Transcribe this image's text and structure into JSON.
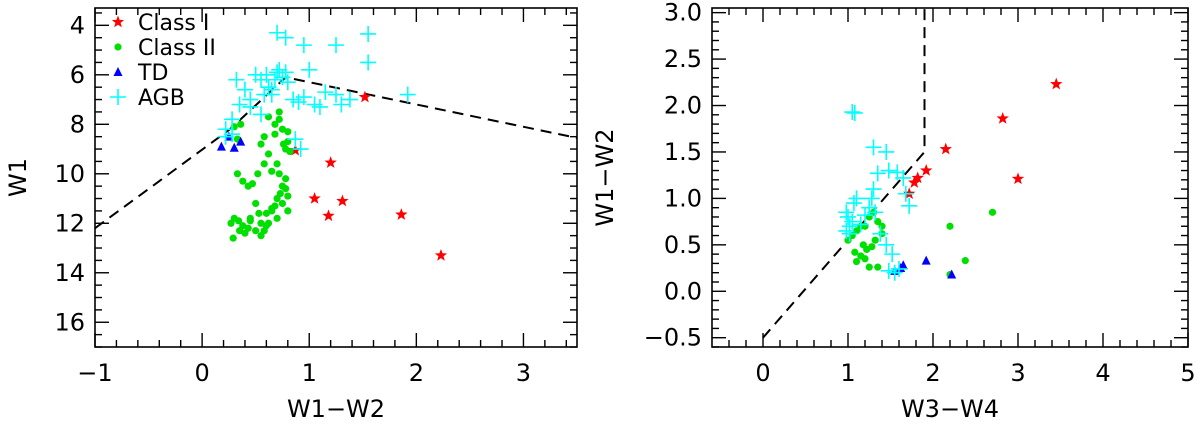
{
  "chart_data": [
    {
      "type": "scatter",
      "xlabel": "W1−W2",
      "ylabel": "W1",
      "xlim": [
        -1,
        3.5
      ],
      "ylim": [
        17,
        3.3
      ],
      "y_inverted": true,
      "xticks": [
        -1,
        0,
        1,
        2,
        3
      ],
      "xtick_labels": [
        "−1",
        "0",
        "1",
        "2",
        "3"
      ],
      "yticks": [
        4,
        6,
        8,
        10,
        12,
        14,
        16
      ],
      "ytick_labels": [
        "4",
        "6",
        "8",
        "10",
        "12",
        "14",
        "16"
      ],
      "legend": {
        "placement": "top-left",
        "entries": [
          "Class I",
          "Class II",
          "TD",
          "AGB"
        ]
      },
      "series": [
        {
          "name": "Class I",
          "marker": "star",
          "color": "#ff0000",
          "x": [
            0.87,
            1.2,
            1.05,
            1.18,
            1.31,
            1.52,
            1.86,
            2.23
          ],
          "y": [
            9.05,
            9.55,
            11.0,
            11.7,
            11.1,
            6.9,
            11.65,
            13.3
          ]
        },
        {
          "name": "Class II",
          "marker": "circle",
          "color": "#00e000",
          "x": [
            0.3,
            0.33,
            0.36,
            0.29,
            0.35,
            0.27,
            0.3,
            0.34,
            0.38,
            0.4,
            0.43,
            0.45,
            0.33,
            0.38,
            0.43,
            0.47,
            0.5,
            0.53,
            0.55,
            0.58,
            0.6,
            0.62,
            0.65,
            0.68,
            0.7,
            0.73,
            0.75,
            0.78,
            0.8,
            0.82,
            0.45,
            0.5,
            0.55,
            0.6,
            0.65,
            0.7,
            0.75,
            0.8,
            0.52,
            0.58,
            0.65,
            0.72,
            0.78,
            0.55,
            0.62,
            0.7,
            0.58,
            0.68,
            0.75,
            0.62,
            0.72,
            0.8,
            0.68,
            0.78,
            0.72,
            0.8,
            0.76
          ],
          "y": [
            8.1,
            8.6,
            8.0,
            12.6,
            12.3,
            12.0,
            11.8,
            11.9,
            12.1,
            12.4,
            12.2,
            11.8,
            10.0,
            10.3,
            10.5,
            10.4,
            11.2,
            11.6,
            12.5,
            12.3,
            12.1,
            12.0,
            11.5,
            11.3,
            11.0,
            10.8,
            10.5,
            10.2,
            11.5,
            9.1,
            11.9,
            12.3,
            12.0,
            11.6,
            11.4,
            11.8,
            11.2,
            10.9,
            10.0,
            9.6,
            9.9,
            10.0,
            10.6,
            8.8,
            9.2,
            9.6,
            8.5,
            8.0,
            8.2,
            7.7,
            7.8,
            8.7,
            8.4,
            9.0,
            7.5,
            8.3,
            8.8
          ]
        },
        {
          "name": "TD",
          "marker": "triangle",
          "color": "#0000ff",
          "x": [
            0.18,
            0.25,
            0.3,
            0.36
          ],
          "y": [
            8.9,
            8.5,
            8.95,
            8.7
          ]
        },
        {
          "name": "AGB",
          "marker": "plus",
          "color": "#00ffff",
          "x": [
            0.22,
            0.28,
            0.35,
            0.4,
            0.45,
            0.5,
            0.55,
            0.58,
            0.6,
            0.62,
            0.65,
            0.68,
            0.7,
            0.72,
            0.75,
            0.78,
            0.8,
            0.85,
            0.9,
            0.95,
            1.0,
            1.05,
            1.1,
            1.15,
            1.25,
            1.3,
            1.38,
            1.55,
            1.92,
            0.7,
            0.78,
            0.95,
            1.25,
            1.55,
            0.32,
            0.45,
            0.55,
            0.65,
            0.22,
            0.28,
            0.87,
            0.92
          ],
          "y": [
            8.2,
            7.8,
            7.2,
            6.6,
            7.3,
            6.0,
            6.2,
            6.8,
            6.0,
            6.5,
            6.8,
            6.2,
            5.9,
            5.8,
            6.1,
            5.9,
            6.3,
            7.0,
            7.1,
            6.9,
            5.8,
            7.2,
            7.3,
            6.7,
            6.8,
            7.2,
            7.0,
            5.5,
            6.8,
            4.3,
            4.5,
            4.8,
            4.8,
            4.35,
            6.2,
            7.0,
            7.6,
            6.6,
            8.5,
            8.4,
            8.6,
            9.0
          ]
        }
      ],
      "lines": [
        {
          "style": "dashed",
          "points": [
            [
              -1,
              12.2
            ],
            [
              0.26,
              8.2
            ],
            [
              0.78,
              6.1
            ],
            [
              3.5,
              8.55
            ]
          ]
        }
      ]
    },
    {
      "type": "scatter",
      "xlabel": "W3−W4",
      "ylabel": "W1−W2",
      "xlim": [
        -0.6,
        5
      ],
      "ylim": [
        -0.6,
        3.05
      ],
      "xticks": [
        0,
        1,
        2,
        3,
        4,
        5
      ],
      "xtick_labels": [
        "0",
        "1",
        "2",
        "3",
        "4",
        "5"
      ],
      "yticks": [
        -0.5,
        0.0,
        0.5,
        1.0,
        1.5,
        2.0,
        2.5,
        3.0
      ],
      "ytick_labels": [
        "−0.5",
        "0.0",
        "0.5",
        "1.0",
        "1.5",
        "2.0",
        "2.5",
        "3.0"
      ],
      "series": [
        {
          "name": "Class I",
          "marker": "star",
          "color": "#ff0000",
          "x": [
            1.72,
            1.82,
            1.92,
            2.15,
            2.82,
            3.0,
            3.45,
            1.78
          ],
          "y": [
            1.05,
            1.22,
            1.3,
            1.53,
            1.86,
            1.21,
            2.23,
            1.17
          ]
        },
        {
          "name": "Class II",
          "marker": "circle",
          "color": "#00e000",
          "x": [
            1.0,
            1.05,
            1.1,
            1.15,
            1.2,
            1.25,
            1.3,
            1.35,
            1.4,
            1.18,
            1.22,
            1.28,
            1.32,
            1.2,
            1.25,
            1.35,
            1.1,
            2.2,
            2.38,
            2.7,
            2.2,
            1.4,
            1.08,
            1.15
          ],
          "y": [
            0.55,
            0.6,
            0.65,
            0.7,
            0.7,
            0.8,
            0.85,
            0.75,
            0.7,
            0.5,
            0.45,
            0.48,
            0.55,
            0.35,
            0.26,
            0.26,
            0.32,
            0.7,
            0.33,
            0.85,
            0.18,
            0.62,
            0.42,
            0.38
          ]
        },
        {
          "name": "TD",
          "marker": "triangle",
          "color": "#0000ff",
          "x": [
            1.55,
            1.62,
            1.65,
            1.92,
            2.22
          ],
          "y": [
            0.22,
            0.25,
            0.28,
            0.33,
            0.18
          ]
        },
        {
          "name": "AGB",
          "marker": "plus",
          "color": "#00ffff",
          "x": [
            0.98,
            1.02,
            1.05,
            1.0,
            0.98,
            1.02,
            1.07,
            1.1,
            1.15,
            1.3,
            1.35,
            1.45,
            1.48,
            1.28,
            1.3,
            1.32,
            1.2,
            1.25,
            1.38,
            1.45,
            1.52,
            1.58,
            1.65,
            1.68,
            1.72,
            1.48,
            1.55,
            1.6,
            1.05,
            1.08
          ],
          "y": [
            0.65,
            0.7,
            0.75,
            0.8,
            0.85,
            0.62,
            0.95,
            1.0,
            0.72,
            1.55,
            1.27,
            1.5,
            1.3,
            1.0,
            1.1,
            0.85,
            0.82,
            0.9,
            0.62,
            0.5,
            0.4,
            1.28,
            1.22,
            1.05,
            0.92,
            0.22,
            0.2,
            0.24,
            1.93,
            1.92
          ]
        }
      ],
      "lines": [
        {
          "style": "dashed",
          "points": [
            [
              0.0,
              -0.5
            ],
            [
              1.9,
              1.5
            ],
            [
              1.9,
              3.05
            ]
          ]
        }
      ]
    }
  ]
}
